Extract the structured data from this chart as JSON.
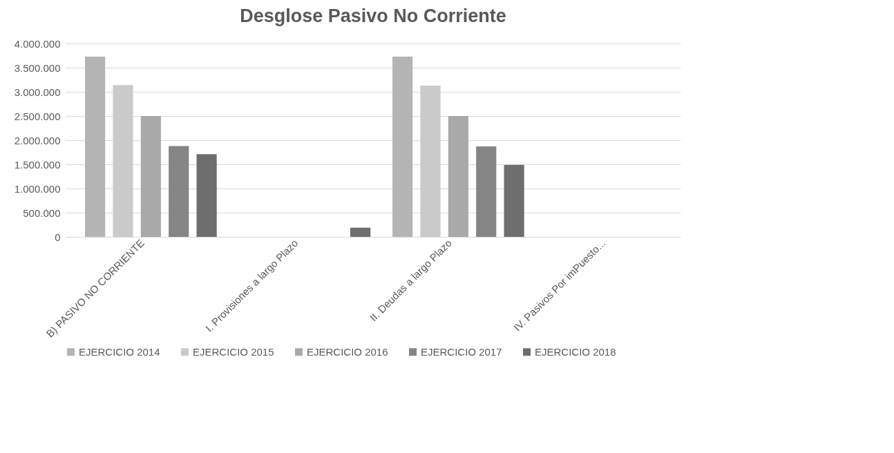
{
  "chart_data": {
    "type": "bar",
    "title": "Desglose Pasivo No Corriente",
    "categories": [
      "B) PASIVO NO CORRIENTE",
      "I. Provisiones a largo Plazo",
      "II. Deudas a largo Plazo",
      "IV. Pasivos Por imPuesto..."
    ],
    "series": [
      {
        "name": "EJERCICIO 2014",
        "color": "#b4b4b4",
        "values": [
          3730000,
          0,
          3730000,
          0
        ]
      },
      {
        "name": "EJERCICIO 2015",
        "color": "#cacaca",
        "values": [
          3140000,
          0,
          3130000,
          0
        ]
      },
      {
        "name": "EJERCICIO 2016",
        "color": "#a9a9a9",
        "values": [
          2500000,
          0,
          2500000,
          0
        ]
      },
      {
        "name": "EJERCICIO 2017",
        "color": "#858585",
        "values": [
          1880000,
          0,
          1870000,
          0
        ]
      },
      {
        "name": "EJERCICIO 2018",
        "color": "#6e6e6e",
        "values": [
          1710000,
          190000,
          1490000,
          0
        ]
      }
    ],
    "ylim": [
      0,
      4000000
    ],
    "yticks": [
      {
        "value": 0,
        "label": "0"
      },
      {
        "value": 500000,
        "label": "500.000"
      },
      {
        "value": 1000000,
        "label": "1.000.000"
      },
      {
        "value": 1500000,
        "label": "1.500.000"
      },
      {
        "value": 2000000,
        "label": "2.000.000"
      },
      {
        "value": 2500000,
        "label": "2.500.000"
      },
      {
        "value": 3000000,
        "label": "3.000.000"
      },
      {
        "value": 3500000,
        "label": "3.500.000"
      },
      {
        "value": 4000000,
        "label": "4.000.000"
      }
    ],
    "grid": "y",
    "legend": "bottom"
  }
}
